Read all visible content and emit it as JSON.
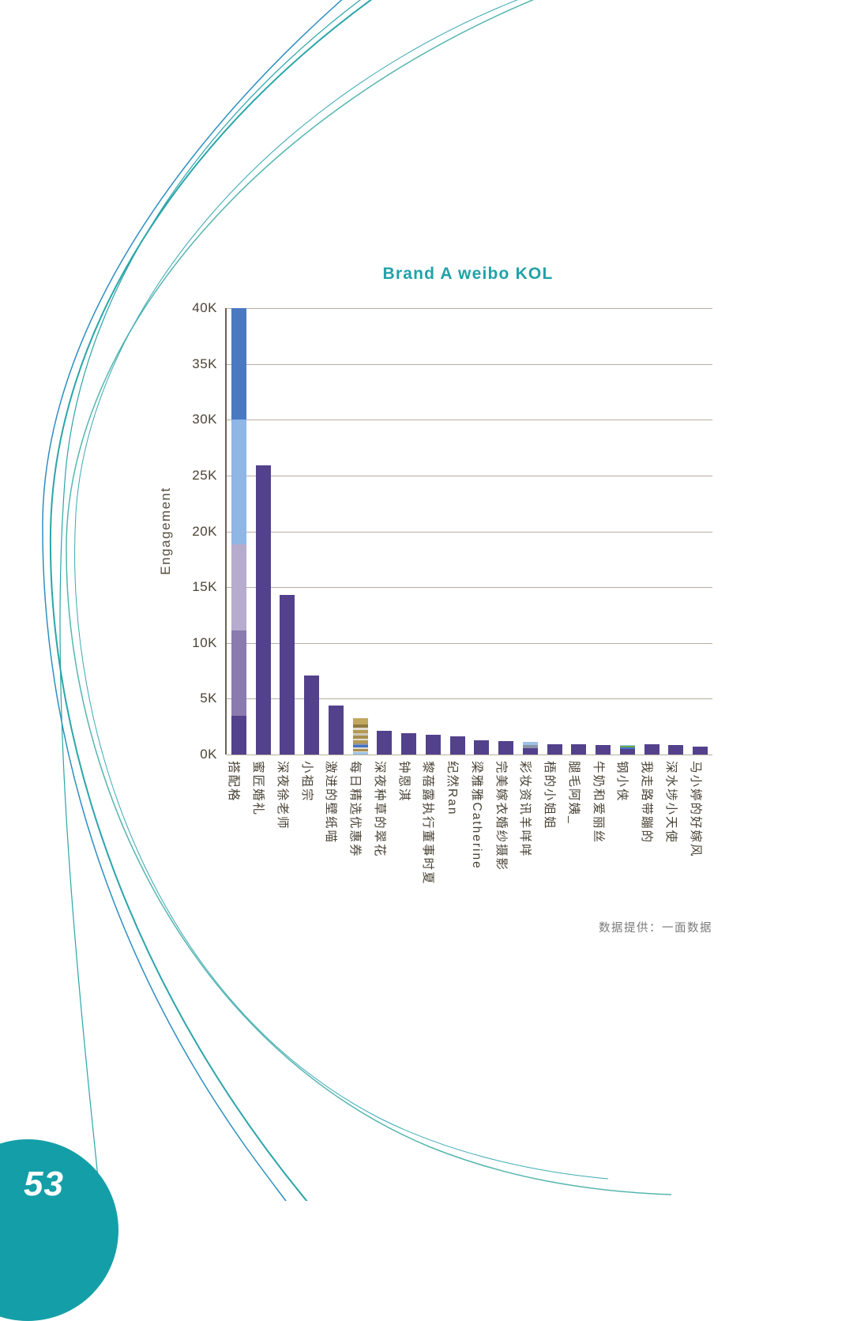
{
  "page": {
    "number": "53",
    "credit": "数据提供：一面数据"
  },
  "colors": {
    "title_teal": "#21a2a7",
    "bar_purple": "#53418c",
    "grid": "#b8ae9f",
    "axis_text": "#4b4437",
    "badge_teal": "#149fa8",
    "curve_teal": "#2ba5a9",
    "curve_blue": "#2e8ec0"
  },
  "chart_data": {
    "type": "bar",
    "title": "Brand A weibo KOL",
    "xlabel": "",
    "ylabel": "Engagement",
    "ylim": [
      0,
      40
    ],
    "ytick_step": 5,
    "ytick_suffix": "K",
    "grid": true,
    "legend": "none",
    "bar_color": "#53418c",
    "bars": [
      {
        "label": "搭配格",
        "total": 40.0,
        "segments": [
          {
            "value": 3.5,
            "color": "#53418c"
          },
          {
            "value": 7.6,
            "color": "#8a7aae"
          },
          {
            "value": 7.7,
            "color": "#b7abce"
          },
          {
            "value": 11.2,
            "color": "#8fb6e4"
          },
          {
            "value": 10.0,
            "color": "#4a79c2"
          }
        ]
      },
      {
        "label": "蜜匠婚礼",
        "total": 25.9
      },
      {
        "label": "深夜徐老师",
        "total": 14.3
      },
      {
        "label": "小祖宗",
        "total": 7.1
      },
      {
        "label": "激进的壁纸喵",
        "total": 4.4
      },
      {
        "label": "每日精选优惠券",
        "total": 3.3,
        "segments": [
          {
            "value": 0.18,
            "color": "#9dc3e6"
          },
          {
            "value": 0.12,
            "color": "#e2ddd2"
          },
          {
            "value": 0.22,
            "color": "#a98f4e"
          },
          {
            "value": 0.15,
            "color": "#e2ddd2"
          },
          {
            "value": 0.2,
            "color": "#4472c4"
          },
          {
            "value": 0.15,
            "color": "#8a96a8"
          },
          {
            "value": 0.25,
            "color": "#b59a55"
          },
          {
            "value": 0.18,
            "color": "#e2ddd2"
          },
          {
            "value": 0.25,
            "color": "#a98f4e"
          },
          {
            "value": 0.2,
            "color": "#cfc9bc"
          },
          {
            "value": 0.3,
            "color": "#b59a55"
          },
          {
            "value": 0.2,
            "color": "#e2ddd2"
          },
          {
            "value": 0.3,
            "color": "#8f7a42"
          },
          {
            "value": 0.6,
            "color": "#c2a75e"
          }
        ]
      },
      {
        "label": "深夜种草的翠花",
        "total": 2.1
      },
      {
        "label": "钟恩淇",
        "total": 1.9
      },
      {
        "label": "黎蓓露执行董事时夏",
        "total": 1.8
      },
      {
        "label": "纪然Ran",
        "total": 1.6
      },
      {
        "label": "梁雅雅Catherine",
        "total": 1.3
      },
      {
        "label": "完美嫁衣婚纱摄影",
        "total": 1.2
      },
      {
        "label": "彩妆资讯羊咩咩",
        "total": 1.1,
        "segments": [
          {
            "value": 0.6,
            "color": "#53418c"
          },
          {
            "value": 0.25,
            "color": "#8a96a8"
          },
          {
            "value": 0.25,
            "color": "#9dc3e6"
          }
        ]
      },
      {
        "label": "梧的小姐姐",
        "total": 0.95
      },
      {
        "label": "腿毛阿姨_",
        "total": 0.9
      },
      {
        "label": "牛奶和爱丽丝",
        "total": 0.85
      },
      {
        "label": "钢小侠",
        "total": 0.85,
        "segments": [
          {
            "value": 0.5,
            "color": "#53418c"
          },
          {
            "value": 0.12,
            "color": "#4472c4"
          },
          {
            "value": 0.13,
            "color": "#6aa84f"
          },
          {
            "value": 0.1,
            "color": "#9dc3e6"
          }
        ]
      },
      {
        "label": "我走路带蹦的",
        "total": 0.95
      },
      {
        "label": "深水埗小天使",
        "total": 0.85
      },
      {
        "label": "马小婷的好嫁风",
        "total": 0.7
      }
    ]
  }
}
